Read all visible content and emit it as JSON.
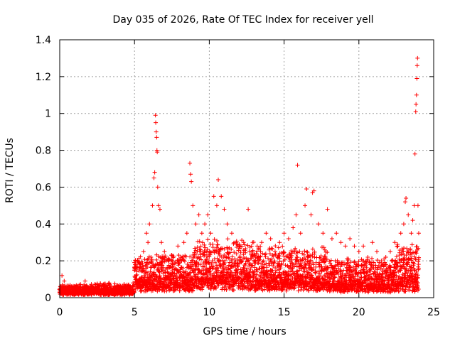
{
  "chart_data": {
    "type": "scatter",
    "title": "Day 035 of 2026, Rate Of TEC Index for receiver yell",
    "xlabel": "GPS time / hours",
    "ylabel": "ROTI / TECUs",
    "xlim": [
      0,
      25
    ],
    "ylim": [
      0,
      1.4
    ],
    "xticks": [
      {
        "v": 0,
        "label": "0"
      },
      {
        "v": 5,
        "label": "5"
      },
      {
        "v": 10,
        "label": "10"
      },
      {
        "v": 15,
        "label": "15"
      },
      {
        "v": 20,
        "label": "20"
      },
      {
        "v": 25,
        "label": "25"
      }
    ],
    "yticks": [
      {
        "v": 0,
        "label": "0"
      },
      {
        "v": 0.2,
        "label": "0.2"
      },
      {
        "v": 0.4,
        "label": "0.4"
      },
      {
        "v": 0.6,
        "label": "0.6"
      },
      {
        "v": 0.8,
        "label": "0.8"
      },
      {
        "v": 1.0,
        "label": "1"
      },
      {
        "v": 1.2,
        "label": "1.2"
      },
      {
        "v": 1.4,
        "label": "1.4"
      }
    ],
    "grid": true,
    "marker": "+",
    "color": "#ff0000",
    "series": [
      {
        "name": "ROTI",
        "points": [
          [
            0.0,
            0.03
          ],
          [
            0.1,
            0.06
          ],
          [
            0.15,
            0.12
          ],
          [
            0.2,
            0.02
          ],
          [
            0.3,
            0.09
          ],
          [
            0.4,
            0.05
          ],
          [
            0.5,
            0.04
          ],
          [
            0.7,
            0.03
          ],
          [
            0.9,
            0.05
          ],
          [
            1.1,
            0.02
          ],
          [
            1.3,
            0.07
          ],
          [
            1.5,
            0.04
          ],
          [
            1.7,
            0.09
          ],
          [
            1.9,
            0.03
          ],
          [
            2.1,
            0.06
          ],
          [
            2.3,
            0.02
          ],
          [
            2.5,
            0.05
          ],
          [
            2.7,
            0.03
          ],
          [
            2.9,
            0.07
          ],
          [
            3.1,
            0.02
          ],
          [
            3.3,
            0.08
          ],
          [
            3.5,
            0.04
          ],
          [
            3.7,
            0.06
          ],
          [
            3.9,
            0.03
          ],
          [
            4.1,
            0.05
          ],
          [
            4.3,
            0.04
          ],
          [
            4.5,
            0.07
          ],
          [
            4.7,
            0.05
          ],
          [
            4.9,
            0.08
          ],
          [
            5.0,
            0.15
          ],
          [
            5.1,
            0.12
          ],
          [
            5.2,
            0.2
          ],
          [
            5.4,
            0.18
          ],
          [
            5.6,
            0.25
          ],
          [
            5.8,
            0.35
          ],
          [
            5.9,
            0.3
          ],
          [
            6.0,
            0.4
          ],
          [
            6.1,
            0.22
          ],
          [
            6.2,
            0.5
          ],
          [
            6.3,
            0.65
          ],
          [
            6.35,
            0.68
          ],
          [
            6.4,
            0.99
          ],
          [
            6.42,
            0.95
          ],
          [
            6.45,
            0.9
          ],
          [
            6.48,
            0.87
          ],
          [
            6.5,
            0.8
          ],
          [
            6.52,
            0.79
          ],
          [
            6.55,
            0.6
          ],
          [
            6.6,
            0.5
          ],
          [
            6.7,
            0.48
          ],
          [
            6.8,
            0.3
          ],
          [
            7.0,
            0.25
          ],
          [
            7.3,
            0.2
          ],
          [
            7.6,
            0.18
          ],
          [
            7.9,
            0.28
          ],
          [
            8.1,
            0.22
          ],
          [
            8.3,
            0.3
          ],
          [
            8.5,
            0.35
          ],
          [
            8.7,
            0.73
          ],
          [
            8.75,
            0.67
          ],
          [
            8.8,
            0.63
          ],
          [
            8.9,
            0.5
          ],
          [
            9.1,
            0.4
          ],
          [
            9.3,
            0.45
          ],
          [
            9.5,
            0.35
          ],
          [
            9.7,
            0.4
          ],
          [
            9.9,
            0.45
          ],
          [
            10.1,
            0.35
          ],
          [
            10.3,
            0.55
          ],
          [
            10.5,
            0.5
          ],
          [
            10.6,
            0.64
          ],
          [
            10.8,
            0.55
          ],
          [
            11.0,
            0.48
          ],
          [
            11.2,
            0.4
          ],
          [
            11.5,
            0.35
          ],
          [
            11.8,
            0.3
          ],
          [
            12.0,
            0.28
          ],
          [
            12.3,
            0.3
          ],
          [
            12.6,
            0.48
          ],
          [
            12.9,
            0.3
          ],
          [
            13.2,
            0.28
          ],
          [
            13.5,
            0.3
          ],
          [
            13.8,
            0.35
          ],
          [
            14.1,
            0.32
          ],
          [
            14.4,
            0.25
          ],
          [
            14.7,
            0.3
          ],
          [
            15.0,
            0.35
          ],
          [
            15.3,
            0.32
          ],
          [
            15.6,
            0.38
          ],
          [
            15.8,
            0.45
          ],
          [
            15.9,
            0.72
          ],
          [
            16.1,
            0.35
          ],
          [
            16.4,
            0.5
          ],
          [
            16.5,
            0.59
          ],
          [
            16.8,
            0.45
          ],
          [
            16.9,
            0.57
          ],
          [
            17.0,
            0.58
          ],
          [
            17.3,
            0.4
          ],
          [
            17.6,
            0.35
          ],
          [
            17.9,
            0.48
          ],
          [
            18.2,
            0.32
          ],
          [
            18.5,
            0.35
          ],
          [
            18.8,
            0.3
          ],
          [
            19.1,
            0.28
          ],
          [
            19.4,
            0.32
          ],
          [
            19.7,
            0.28
          ],
          [
            20.0,
            0.25
          ],
          [
            20.3,
            0.28
          ],
          [
            20.6,
            0.22
          ],
          [
            20.9,
            0.3
          ],
          [
            21.2,
            0.25
          ],
          [
            21.5,
            0.2
          ],
          [
            21.8,
            0.22
          ],
          [
            22.1,
            0.25
          ],
          [
            22.4,
            0.3
          ],
          [
            22.6,
            0.28
          ],
          [
            22.8,
            0.35
          ],
          [
            23.0,
            0.4
          ],
          [
            23.1,
            0.52
          ],
          [
            23.15,
            0.54
          ],
          [
            23.3,
            0.45
          ],
          [
            23.5,
            0.35
          ],
          [
            23.6,
            0.42
          ],
          [
            23.7,
            0.5
          ],
          [
            23.75,
            0.78
          ],
          [
            23.8,
            1.01
          ],
          [
            23.82,
            1.05
          ],
          [
            23.85,
            1.1
          ],
          [
            23.88,
            1.19
          ],
          [
            23.9,
            1.26
          ],
          [
            23.92,
            1.3
          ],
          [
            23.95,
            0.5
          ],
          [
            24.0,
            0.35
          ]
        ]
      }
    ],
    "density_note_values": {
      "x_start": 0,
      "x_end": 24,
      "x_step": 0.025,
      "segments": [
        {
          "from": 0,
          "to": 5,
          "base": 0.035,
          "spread": 0.045
        },
        {
          "from": 5,
          "to": 9,
          "base": 0.08,
          "spread": 0.17
        },
        {
          "from": 9,
          "to": 13,
          "base": 0.1,
          "spread": 0.22
        },
        {
          "from": 13,
          "to": 18,
          "base": 0.09,
          "spread": 0.2
        },
        {
          "from": 18,
          "to": 22.5,
          "base": 0.07,
          "spread": 0.15
        },
        {
          "from": 22.5,
          "to": 24,
          "base": 0.08,
          "spread": 0.22
        }
      ]
    }
  }
}
